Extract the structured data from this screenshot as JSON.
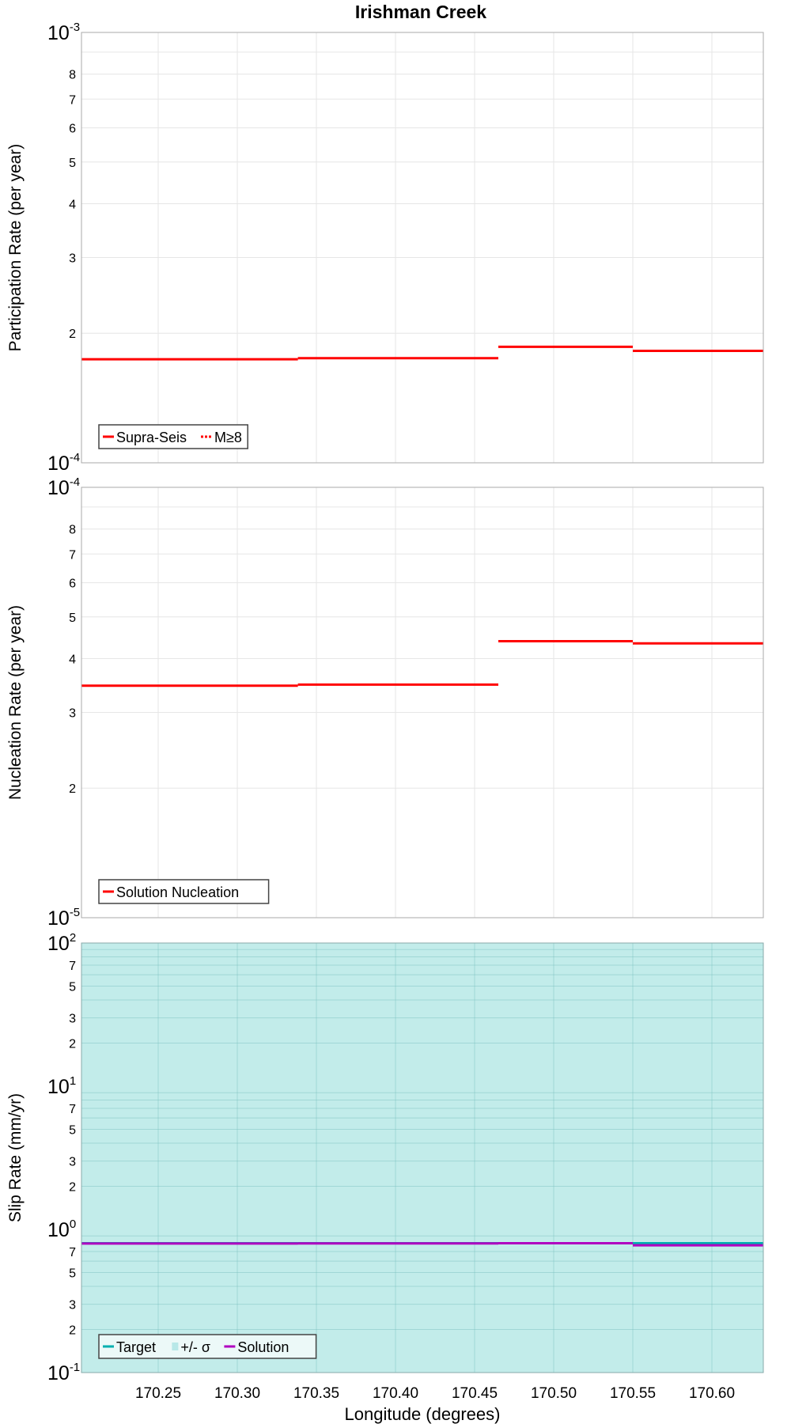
{
  "title": "Irishman Creek",
  "colors": {
    "red": "#ff0000",
    "target": "#00b0b0",
    "sigma": "#c2ecea",
    "solution": "#b000c0",
    "grid": "#e6e6e6"
  },
  "chart_data": [
    {
      "type": "line",
      "ylabel": "Participation Rate (per year)",
      "yscale": "log",
      "ylim": [
        0.0001,
        0.001
      ],
      "xlim": [
        170.2015,
        170.6325
      ],
      "ytick_major": [
        "10-3",
        "10-4"
      ],
      "ytick_minor": [
        "2",
        "3",
        "4",
        "5",
        "6",
        "7",
        "8"
      ],
      "legend": {
        "placement": "bottom-left",
        "entries": [
          "Supra-Seis",
          "M≥8"
        ]
      },
      "series": [
        {
          "name": "Supra-Seis",
          "style": "solid",
          "segments": [
            {
              "x": [
                170.2015,
                170.3383
              ],
              "y": 0.000174
            },
            {
              "x": [
                170.3383,
                170.465
              ],
              "y": 0.000175
            },
            {
              "x": [
                170.465,
                170.55
              ],
              "y": 0.000186
            },
            {
              "x": [
                170.55,
                170.6325
              ],
              "y": 0.000182
            }
          ]
        },
        {
          "name": "M≥8",
          "style": "dotted",
          "segments": []
        }
      ]
    },
    {
      "type": "line",
      "ylabel": "Nucleation Rate (per year)",
      "yscale": "log",
      "ylim": [
        1e-05,
        0.0001
      ],
      "xlim": [
        170.2015,
        170.6325
      ],
      "ytick_major": [
        "10-4",
        "10-5"
      ],
      "ytick_minor": [
        "2",
        "3",
        "4",
        "5",
        "6",
        "7",
        "8"
      ],
      "legend": {
        "placement": "bottom-left",
        "entries": [
          "Solution Nucleation"
        ]
      },
      "series": [
        {
          "name": "Solution Nucleation",
          "style": "solid",
          "segments": [
            {
              "x": [
                170.2015,
                170.3383
              ],
              "y": 3.46e-05
            },
            {
              "x": [
                170.3383,
                170.465
              ],
              "y": 3.48e-05
            },
            {
              "x": [
                170.465,
                170.55
              ],
              "y": 4.39e-05
            },
            {
              "x": [
                170.55,
                170.6325
              ],
              "y": 4.34e-05
            }
          ]
        }
      ]
    },
    {
      "type": "line",
      "ylabel": "Slip Rate (mm/yr)",
      "xlabel": "Longitude (degrees)",
      "yscale": "log",
      "ylim": [
        0.1,
        100
      ],
      "xlim": [
        170.2015,
        170.6325
      ],
      "xticks": [
        "170.25",
        "170.30",
        "170.35",
        "170.40",
        "170.45",
        "170.50",
        "170.55",
        "170.60"
      ],
      "ytick_major": [
        "10-1",
        "100",
        "101",
        "102"
      ],
      "ytick_minor": [
        "2",
        "3",
        "5",
        "7"
      ],
      "legend": {
        "placement": "bottom-left",
        "entries": [
          "Target",
          "+/- σ",
          "Solution"
        ]
      },
      "series": [
        {
          "name": "+/- σ",
          "style": "band",
          "low": 0.05,
          "high": 200
        },
        {
          "name": "Target",
          "style": "solid",
          "segments": [
            {
              "x": [
                170.2015,
                170.3383
              ],
              "y": 0.8
            },
            {
              "x": [
                170.3383,
                170.465
              ],
              "y": 0.8
            },
            {
              "x": [
                170.465,
                170.55
              ],
              "y": 0.8
            },
            {
              "x": [
                170.55,
                170.6325
              ],
              "y": 0.8
            }
          ]
        },
        {
          "name": "Solution",
          "style": "solid",
          "segments": [
            {
              "x": [
                170.2015,
                170.3383
              ],
              "y": 0.797
            },
            {
              "x": [
                170.3383,
                170.465
              ],
              "y": 0.798
            },
            {
              "x": [
                170.465,
                170.55
              ],
              "y": 0.8
            },
            {
              "x": [
                170.55,
                170.6325
              ],
              "y": 0.774
            }
          ]
        }
      ]
    }
  ]
}
